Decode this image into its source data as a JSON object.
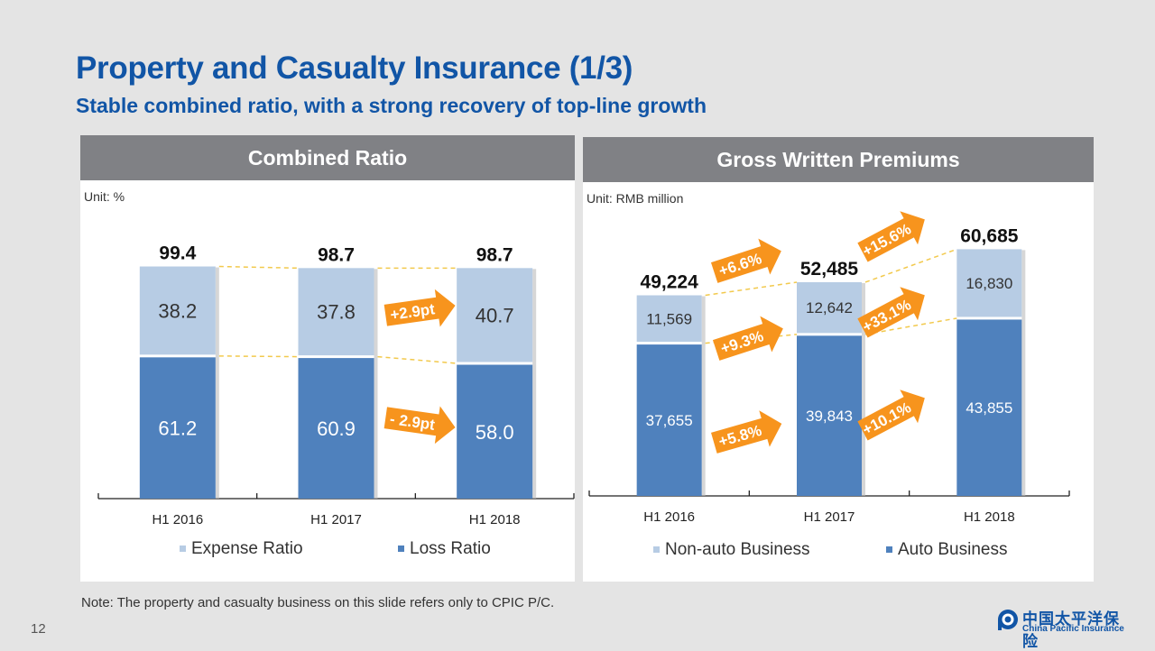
{
  "slide": {
    "title": "Property and Casualty Insurance (1/3)",
    "subtitle": "Stable combined ratio, with a strong recovery of top-line growth",
    "note": "Note: The property and casualty business on this slide refers only to CPIC P/C.",
    "page_number": "12",
    "logo": {
      "chinese": "中国太平洋保险",
      "english": "China Pacific Insurance",
      "icon": "cpic-logo-icon"
    }
  },
  "colors": {
    "title_blue": "#1155a6",
    "light_bar": "#b7cce4",
    "dark_bar": "#4f81bd",
    "arrow_orange": "#f7941d",
    "dashed_line": "#f2c94c",
    "header_grey": "#808185"
  },
  "chart_data": [
    {
      "type": "bar",
      "stacked": true,
      "title": "Combined Ratio",
      "unit_label": "Unit: %",
      "categories": [
        "H1 2016",
        "H1 2017",
        "H1 2018"
      ],
      "series": [
        {
          "name": "Loss Ratio",
          "values": [
            61.2,
            60.9,
            58.0
          ],
          "labels": [
            "61.2",
            "60.9",
            "58.0"
          ]
        },
        {
          "name": "Expense Ratio",
          "values": [
            38.2,
            37.8,
            40.7
          ],
          "labels": [
            "38.2",
            "37.8",
            "40.7"
          ]
        }
      ],
      "totals": [
        99.4,
        98.7,
        98.7
      ],
      "total_labels": [
        "99.4",
        "98.7",
        "98.7"
      ],
      "legend": [
        {
          "name": "Expense Ratio"
        },
        {
          "name": "Loss Ratio"
        }
      ],
      "legend_position": "bottom",
      "annotations": [
        {
          "text": "+2.9pt",
          "between": [
            "H1 2017",
            "H1 2018"
          ],
          "series": "Expense Ratio"
        },
        {
          "text": "- 2.9pt",
          "between": [
            "H1 2017",
            "H1 2018"
          ],
          "series": "Loss Ratio"
        }
      ],
      "ylim": [
        0,
        100
      ],
      "grid": false
    },
    {
      "type": "bar",
      "stacked": true,
      "title": "Gross Written Premiums",
      "unit_label": "Unit: RMB million",
      "categories": [
        "H1 2016",
        "H1 2017",
        "H1 2018"
      ],
      "series": [
        {
          "name": "Auto Business",
          "values": [
            37655,
            39843,
            43855
          ],
          "labels": [
            "37,655",
            "39,843",
            "43,855"
          ]
        },
        {
          "name": "Non-auto Business",
          "values": [
            11569,
            12642,
            16830
          ],
          "labels": [
            "11,569",
            "12,642",
            "16,830"
          ]
        }
      ],
      "totals": [
        49224,
        52485,
        60685
      ],
      "total_labels": [
        "49,224",
        "52,485",
        "60,685"
      ],
      "legend": [
        {
          "name": "Non-auto Business"
        },
        {
          "name": "Auto Business"
        }
      ],
      "legend_position": "bottom",
      "annotations": [
        {
          "text": "+6.6%",
          "between": [
            "H1 2016",
            "H1 2017"
          ],
          "series": "Total"
        },
        {
          "text": "+9.3%",
          "between": [
            "H1 2016",
            "H1 2017"
          ],
          "series": "Non-auto Business"
        },
        {
          "text": "+5.8%",
          "between": [
            "H1 2016",
            "H1 2017"
          ],
          "series": "Auto Business"
        },
        {
          "text": "+15.6%",
          "between": [
            "H1 2017",
            "H1 2018"
          ],
          "series": "Total"
        },
        {
          "text": "+33.1%",
          "between": [
            "H1 2017",
            "H1 2018"
          ],
          "series": "Non-auto Business"
        },
        {
          "text": "+10.1%",
          "between": [
            "H1 2017",
            "H1 2018"
          ],
          "series": "Auto Business"
        }
      ],
      "ylim": [
        0,
        62000
      ],
      "grid": false
    }
  ]
}
